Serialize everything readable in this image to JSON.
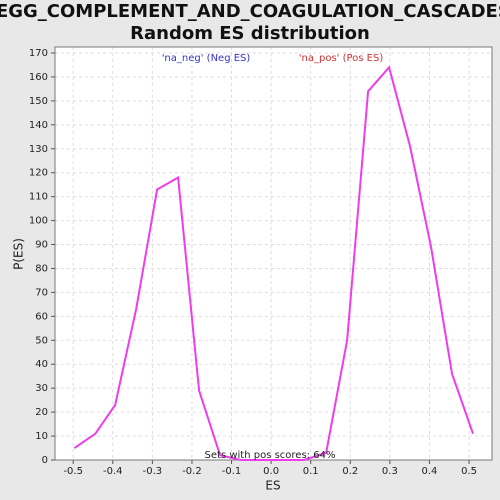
{
  "chart_data": {
    "type": "line",
    "title": [
      "KEGG_COMPLEMENT_AND_COAGULATION_CASCADES:",
      "Random ES distribution"
    ],
    "x_label": "ES",
    "y_label": "P(ES)",
    "annotations": [
      {
        "text": "'na_neg' (Neg ES)",
        "color": "#3333cc"
      },
      {
        "text": "'na_pos' (Pos ES)",
        "color": "#cc3333"
      },
      {
        "text": "Sets with pos scores: 64%",
        "color": "#222222"
      }
    ],
    "x": [
      -0.497,
      -0.444,
      -0.394,
      -0.341,
      -0.288,
      -0.235,
      -0.182,
      -0.129,
      -0.076,
      -0.023,
      0.03,
      0.083,
      0.139,
      0.192,
      0.245,
      0.298,
      0.351,
      0.404,
      0.457,
      0.51
    ],
    "values": [
      5,
      11,
      23,
      63,
      113,
      118,
      29,
      2,
      0,
      0,
      0,
      0,
      3,
      50,
      154,
      164,
      131,
      89,
      36,
      11
    ],
    "color": "#ee3cee",
    "xlim": [
      -0.546,
      0.558
    ],
    "xticks": [
      -0.5,
      -0.4,
      -0.3,
      -0.2,
      -0.1,
      {
        "value": 0,
        "label": "0.0"
      },
      0.1,
      0.2,
      0.3,
      0.4,
      0.5
    ],
    "ylim": [
      0,
      170
    ],
    "yticks": [
      0,
      10,
      20,
      30,
      40,
      50,
      60,
      70,
      80,
      90,
      100,
      110,
      120,
      130,
      140,
      150,
      160,
      170
    ],
    "grid": true
  }
}
